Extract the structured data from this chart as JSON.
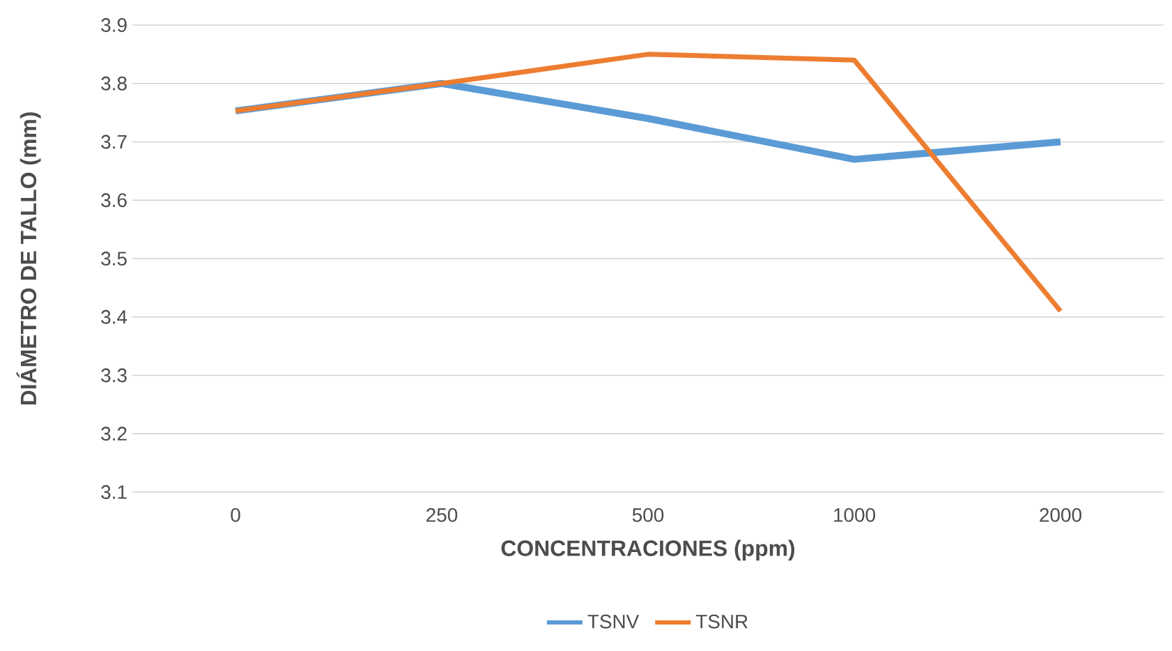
{
  "chart_data": {
    "type": "line",
    "xlabel": "CONCENTRACIONES (ppm)",
    "ylabel": "DIÁMETRO DE TALLO (mm)",
    "categories": [
      "0",
      "250",
      "500",
      "1000",
      "2000"
    ],
    "series": [
      {
        "name": "TSNV",
        "color": "#5b9bd5",
        "values": [
          3.753,
          3.8,
          3.74,
          3.67,
          3.7
        ]
      },
      {
        "name": "TSNR",
        "color": "#ed7d31",
        "values": [
          3.753,
          3.8,
          3.85,
          3.84,
          3.41
        ]
      }
    ],
    "ylim": [
      3.1,
      3.9
    ],
    "yticks": [
      3.1,
      3.2,
      3.3,
      3.4,
      3.5,
      3.6,
      3.7,
      3.8,
      3.9
    ],
    "grid": "y",
    "legend": "bottom",
    "line_style": "solid",
    "marker": "none"
  }
}
